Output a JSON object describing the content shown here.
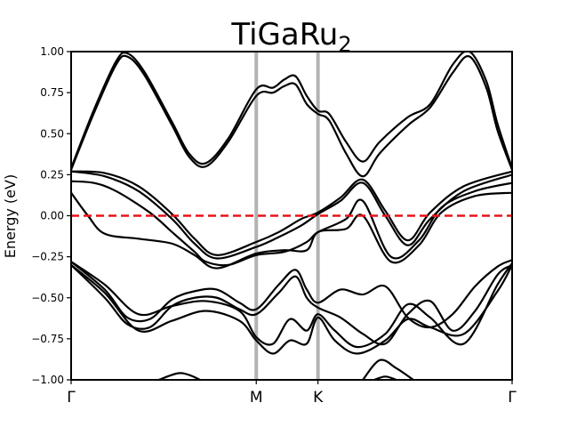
{
  "chart_data": {
    "type": "line",
    "title": "TiGaRu",
    "title_subscript": "2",
    "xlabel": "",
    "ylabel": "Energy (eV)",
    "ylim": [
      -1.0,
      1.0
    ],
    "xlim": [
      0.0,
      3.93
    ],
    "grid": false,
    "kpoints": [
      {
        "label": "Γ",
        "x": 0.0
      },
      {
        "label": "M",
        "x": 1.65
      },
      {
        "label": "K",
        "x": 2.2
      },
      {
        "label": "Γ",
        "x": 3.93
      }
    ],
    "y_ticks": [
      -1.0,
      -0.75,
      -0.5,
      -0.25,
      0.0,
      0.25,
      0.5,
      0.75,
      1.0
    ],
    "y_tick_labels": [
      "−1.00",
      "−0.75",
      "−0.50",
      "−0.25",
      "0.00",
      "0.25",
      "0.50",
      "0.75",
      "1.00"
    ],
    "fermi_level": 0.0,
    "colors": {
      "bands": "#000000",
      "fermi": "#e8141c",
      "kpoint_lines": "#b3b3b3"
    },
    "series": [
      {
        "x": [
          0.0,
          0.2,
          0.4,
          0.5,
          0.65,
          0.9,
          1.05,
          1.2,
          1.4,
          1.65,
          1.8,
          1.9,
          2.0,
          2.1,
          2.2,
          2.3,
          2.45,
          2.6,
          2.75,
          3.0,
          3.2,
          3.4,
          3.55,
          3.7,
          3.8,
          3.93
        ],
        "values": [
          0.28,
          0.62,
          0.92,
          0.97,
          0.86,
          0.55,
          0.36,
          0.3,
          0.45,
          0.73,
          0.75,
          0.79,
          0.8,
          0.68,
          0.62,
          0.58,
          0.38,
          0.24,
          0.38,
          0.55,
          0.66,
          0.87,
          0.97,
          0.78,
          0.52,
          0.28
        ]
      },
      {
        "x": [
          0.0,
          0.2,
          0.4,
          0.5,
          0.65,
          0.9,
          1.05,
          1.2,
          1.4,
          1.65,
          1.8,
          1.9,
          2.0,
          2.1,
          2.2,
          2.3,
          2.45,
          2.6,
          2.75,
          3.0,
          3.2,
          3.4,
          3.55,
          3.7,
          3.8,
          3.93
        ],
        "values": [
          0.29,
          0.64,
          0.94,
          0.99,
          0.88,
          0.57,
          0.38,
          0.32,
          0.47,
          0.77,
          0.78,
          0.83,
          0.85,
          0.73,
          0.64,
          0.62,
          0.45,
          0.33,
          0.45,
          0.6,
          0.68,
          0.92,
          1.0,
          0.82,
          0.56,
          0.29
        ]
      },
      {
        "x": [
          0.0,
          0.3,
          0.6,
          0.9,
          1.1,
          1.3,
          1.65,
          1.85,
          2.05,
          2.2,
          2.4,
          2.6,
          2.8,
          3.0,
          3.2,
          3.5,
          3.93
        ],
        "values": [
          0.27,
          0.24,
          0.15,
          -0.02,
          -0.17,
          -0.26,
          -0.19,
          -0.13,
          -0.06,
          0.01,
          0.09,
          0.2,
          0.0,
          -0.18,
          -0.02,
          0.15,
          0.25
        ]
      },
      {
        "x": [
          0.0,
          0.3,
          0.6,
          0.9,
          1.1,
          1.3,
          1.65,
          1.85,
          2.05,
          2.2,
          2.4,
          2.6,
          2.8,
          3.0,
          3.2,
          3.5,
          3.93
        ],
        "values": [
          0.27,
          0.26,
          0.18,
          0.01,
          -0.14,
          -0.24,
          -0.16,
          -0.1,
          -0.02,
          0.02,
          0.11,
          0.22,
          0.03,
          -0.15,
          0.02,
          0.18,
          0.27
        ]
      },
      {
        "x": [
          0.0,
          0.2,
          0.4,
          0.7,
          0.9,
          1.1,
          1.2,
          1.4,
          1.65,
          1.9,
          2.1,
          2.2,
          2.45,
          2.6,
          2.85,
          3.1,
          3.3,
          3.6,
          3.93
        ],
        "values": [
          0.21,
          0.2,
          0.15,
          0.02,
          -0.1,
          -0.22,
          -0.28,
          -0.3,
          -0.24,
          -0.22,
          -0.16,
          -0.1,
          -0.02,
          0.09,
          -0.25,
          -0.15,
          0.05,
          0.15,
          0.2
        ]
      },
      {
        "x": [
          0.0,
          0.15,
          0.3,
          0.6,
          0.9,
          1.1,
          1.3,
          1.65,
          1.9,
          2.1,
          2.2,
          2.45,
          2.6,
          2.85,
          3.1,
          3.3,
          3.6,
          3.93
        ],
        "values": [
          0.14,
          0.0,
          -0.11,
          -0.14,
          -0.17,
          -0.24,
          -0.32,
          -0.23,
          -0.21,
          -0.21,
          -0.1,
          -0.08,
          0.0,
          -0.28,
          -0.18,
          0.02,
          0.12,
          0.14
        ]
      },
      {
        "x": [
          0.0,
          0.3,
          0.5,
          0.7,
          0.9,
          1.1,
          1.3,
          1.5,
          1.65,
          1.85,
          2.0,
          2.1,
          2.2,
          2.4,
          2.6,
          2.8,
          3.0,
          3.2,
          3.4,
          3.6,
          3.8,
          3.93
        ],
        "values": [
          -0.28,
          -0.45,
          -0.62,
          -0.63,
          -0.51,
          -0.46,
          -0.45,
          -0.53,
          -0.57,
          -0.42,
          -0.33,
          -0.45,
          -0.53,
          -0.45,
          -0.48,
          -0.43,
          -0.62,
          -0.68,
          -0.6,
          -0.43,
          -0.31,
          -0.27
        ]
      },
      {
        "x": [
          0.0,
          0.3,
          0.5,
          0.7,
          0.9,
          1.1,
          1.3,
          1.5,
          1.65,
          1.85,
          2.0,
          2.1,
          2.2,
          2.4,
          2.6,
          2.8,
          3.0,
          3.2,
          3.4,
          3.6,
          3.8,
          3.93
        ],
        "values": [
          -0.3,
          -0.5,
          -0.66,
          -0.68,
          -0.55,
          -0.5,
          -0.5,
          -0.57,
          -0.6,
          -0.47,
          -0.37,
          -0.5,
          -0.56,
          -0.62,
          -0.72,
          -0.78,
          -0.6,
          -0.52,
          -0.7,
          -0.58,
          -0.36,
          -0.3
        ]
      },
      {
        "x": [
          0.0,
          0.3,
          0.6,
          0.9,
          1.2,
          1.5,
          1.65,
          1.8,
          1.95,
          2.1,
          2.2,
          2.35,
          2.55,
          2.8,
          3.0,
          3.2,
          3.5,
          3.8,
          3.93
        ],
        "values": [
          -0.28,
          -0.42,
          -0.6,
          -0.55,
          -0.52,
          -0.58,
          -0.74,
          -0.78,
          -0.63,
          -0.7,
          -0.6,
          -0.7,
          -0.8,
          -0.72,
          -0.54,
          -0.62,
          -0.78,
          -0.42,
          -0.29
        ]
      },
      {
        "x": [
          0.0,
          0.3,
          0.6,
          0.9,
          1.2,
          1.5,
          1.65,
          1.8,
          1.95,
          2.1,
          2.2,
          2.35,
          2.55,
          2.8,
          3.0,
          3.2,
          3.5,
          3.8,
          3.93
        ],
        "values": [
          -0.3,
          -0.47,
          -0.7,
          -0.64,
          -0.58,
          -0.64,
          -0.76,
          -0.84,
          -0.76,
          -0.78,
          -0.62,
          -0.76,
          -0.84,
          -0.76,
          -0.63,
          -0.68,
          -0.72,
          -0.46,
          -0.3
        ]
      },
      {
        "x": [
          0.78,
          0.95,
          1.05,
          1.15
        ],
        "values": [
          -1.0,
          -0.96,
          -0.97,
          -1.0
        ]
      },
      {
        "x": [
          2.6,
          2.75,
          2.9,
          3.05
        ],
        "values": [
          -1.0,
          -0.88,
          -0.93,
          -1.0
        ]
      },
      {
        "x": [
          2.7,
          2.8,
          2.9
        ],
        "values": [
          -1.0,
          -0.98,
          -1.0
        ]
      }
    ]
  }
}
